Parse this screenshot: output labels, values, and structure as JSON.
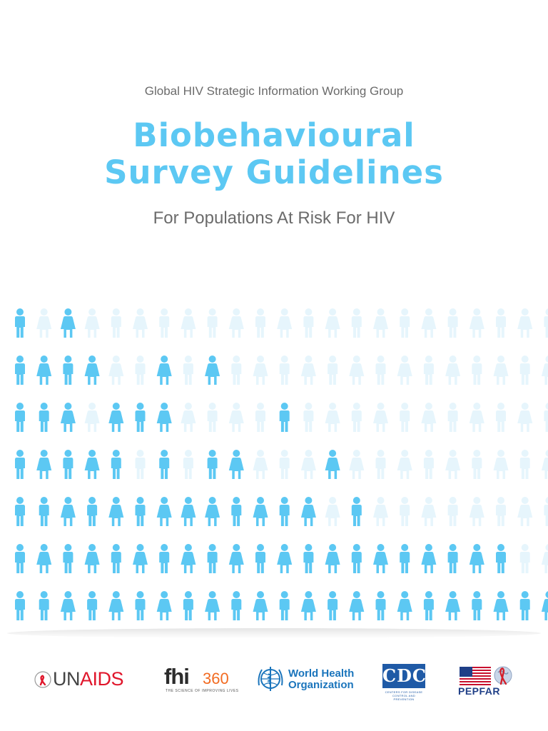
{
  "header": {
    "supertitle": "Global HIV Strategic Information Working Group",
    "title_line1": "Biobehavioural",
    "title_line2": "Survey Guidelines",
    "subtitle": "For Populations At Risk For HIV"
  },
  "figure": {
    "icons": [
      "male-figure-icon",
      "female-figure-icon"
    ],
    "filled_color": "#5cc8f3",
    "faded_color": "#e6f5fc",
    "rows": [
      "MfFfffffffffffffffffffffff",
      "MFMFffFfFfffffffffffffffff",
      "MMFfFMFffffMffffffffffffff",
      "MFMFMfMfMFfffFffffffffffff",
      "MMFMFMFFFMFMFfMfffffffffff",
      "MFMFMFMFMFMFMFMFMFMFMfff",
      "MMFMFMFMFMFMFMFMFMFMFMFM"
    ]
  },
  "logos": {
    "unaids": {
      "prefix": "UN",
      "suffix": "AIDS"
    },
    "fhi360": {
      "mark": "fhi",
      "number": "360",
      "tagline": "THE SCIENCE OF IMPROVING LIVES"
    },
    "who": {
      "line1": "World Health",
      "line2": "Organization"
    },
    "cdc": {
      "mark": "CDC",
      "tagline": "CENTERS FOR DISEASE CONTROL AND PREVENTION"
    },
    "pepfar": {
      "name": "PEPFAR"
    }
  }
}
